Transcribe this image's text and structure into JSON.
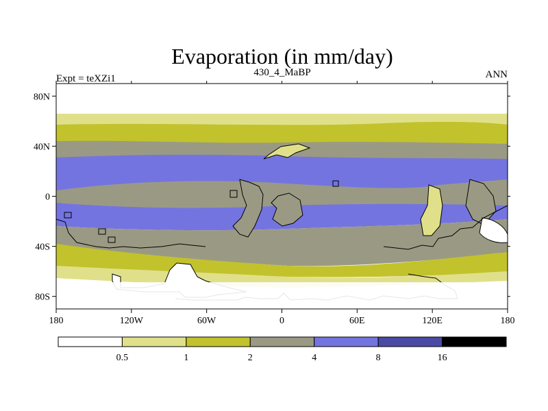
{
  "chart_data": {
    "type": "heatmap",
    "title": "Evaporation (in mm/day)",
    "left_label": "Expt = teXZi1",
    "center_label": "430_4_MaBP",
    "right_label": "ANN",
    "x_ticks": [
      "180",
      "120W",
      "60W",
      "0",
      "60E",
      "120E",
      "180"
    ],
    "x_tick_values": [
      -180,
      -120,
      -60,
      0,
      60,
      120,
      180
    ],
    "y_ticks": [
      "80N",
      "40N",
      "0",
      "40S",
      "80S"
    ],
    "y_tick_values": [
      80,
      40,
      0,
      -40,
      -80
    ],
    "xlim": [
      -180,
      180
    ],
    "ylim": [
      -90,
      90
    ],
    "levels": [
      "0.5",
      "1",
      "2",
      "4",
      "8",
      "16"
    ],
    "level_values": [
      0.5,
      1,
      2,
      4,
      8,
      16
    ],
    "colors": [
      "#ffffff",
      "#e0e08a",
      "#c2c22c",
      "#9a9a84",
      "#7474e0",
      "#4a4aa4",
      "#000000"
    ]
  }
}
